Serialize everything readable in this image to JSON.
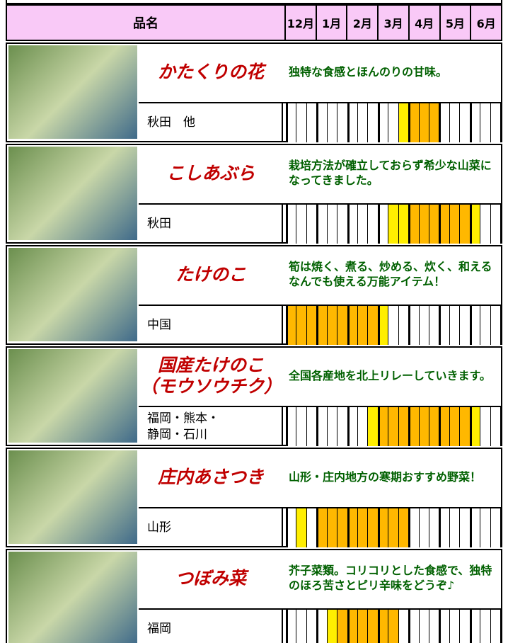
{
  "header": {
    "name": "品名",
    "months": [
      "12月",
      "1月",
      "2月",
      "3月",
      "4月",
      "5月",
      "6月"
    ]
  },
  "items": [
    {
      "name": [
        "かたくりの花"
      ],
      "description": "独特な食感とほんのりの甘味。",
      "region": [
        "秋田　他"
      ],
      "cells": [
        "#fff",
        "#fff",
        "#fff",
        "#fff",
        "#fff",
        "#fff",
        "#fff",
        "#fff",
        "#fff",
        "#fff",
        "#fff",
        "#ffee00",
        "#ffb800",
        "#ffb800",
        "#ffb800",
        "#fff",
        "#fff",
        "#fff",
        "#fff",
        "#fff",
        "#fff"
      ]
    },
    {
      "name": [
        "こしあぶら"
      ],
      "description": "栽培方法が確立しておらず希少な山菜になってきました。",
      "region": [
        "秋田"
      ],
      "cells": [
        "#fff",
        "#fff",
        "#fff",
        "#fff",
        "#fff",
        "#fff",
        "#fff",
        "#fff",
        "#fff",
        "#fff",
        "#ffee00",
        "#ffee00",
        "#ffb800",
        "#ffb800",
        "#ffb800",
        "#ffb800",
        "#ffb800",
        "#ffb800",
        "#ffee00",
        "#fff",
        "#fff"
      ]
    },
    {
      "name": [
        "たけのこ"
      ],
      "description": "筍は焼く、煮る、炒める、炊く、和えるなんでも使える万能アイテム！",
      "region": [
        "中国"
      ],
      "cells": [
        "#ffb800",
        "#ffb800",
        "#ffb800",
        "#ffb800",
        "#ffb800",
        "#ffb800",
        "#ffb800",
        "#ffb800",
        "#ffb800",
        "#ffee00",
        "#fff",
        "#fff",
        "#fff",
        "#fff",
        "#fff",
        "#fff",
        "#fff",
        "#fff",
        "#fff",
        "#fff",
        "#fff"
      ]
    },
    {
      "name": [
        "国産たけのこ",
        "（モウソウチク）"
      ],
      "description": "全国各産地を北上リレーしていきます。",
      "region": [
        "福岡・熊本・",
        "静岡・石川"
      ],
      "cells": [
        "#fff",
        "#fff",
        "#fff",
        "#fff",
        "#fff",
        "#fff",
        "#fff",
        "#fff",
        "#ffee00",
        "#ffb800",
        "#ffb800",
        "#ffb800",
        "#ffb800",
        "#ffb800",
        "#ffb800",
        "#ffb800",
        "#ffb800",
        "#ffb800",
        "#ffee00",
        "#fff",
        "#fff"
      ]
    },
    {
      "name": [
        "庄内あさつき"
      ],
      "description": "山形・庄内地方の寒期おすすめ野菜！",
      "region": [
        "山形"
      ],
      "cells": [
        "#fff",
        "#ffee00",
        "#fff",
        "#ffb800",
        "#ffb800",
        "#ffb800",
        "#ffb800",
        "#ffb800",
        "#ffb800",
        "#ffb800",
        "#ffb800",
        "#ffb800",
        "#fff",
        "#fff",
        "#fff",
        "#fff",
        "#fff",
        "#fff",
        "#fff",
        "#fff",
        "#fff"
      ]
    },
    {
      "name": [
        "つぼみ菜"
      ],
      "description": "芥子菜類。コリコリとした食感で、独特のほろ苦さとピリ辛味をどうぞ♪",
      "region": [
        "福岡"
      ],
      "cells": [
        "#fff",
        "#fff",
        "#fff",
        "#fff",
        "#ffee00",
        "#ffb800",
        "#ffb800",
        "#ffb800",
        "#ffb800",
        "#ffb800",
        "#ffb800",
        "#fff",
        "#fff",
        "#fff",
        "#fff",
        "#fff",
        "#fff",
        "#fff",
        "#fff",
        "#fff",
        "#fff"
      ]
    }
  ]
}
